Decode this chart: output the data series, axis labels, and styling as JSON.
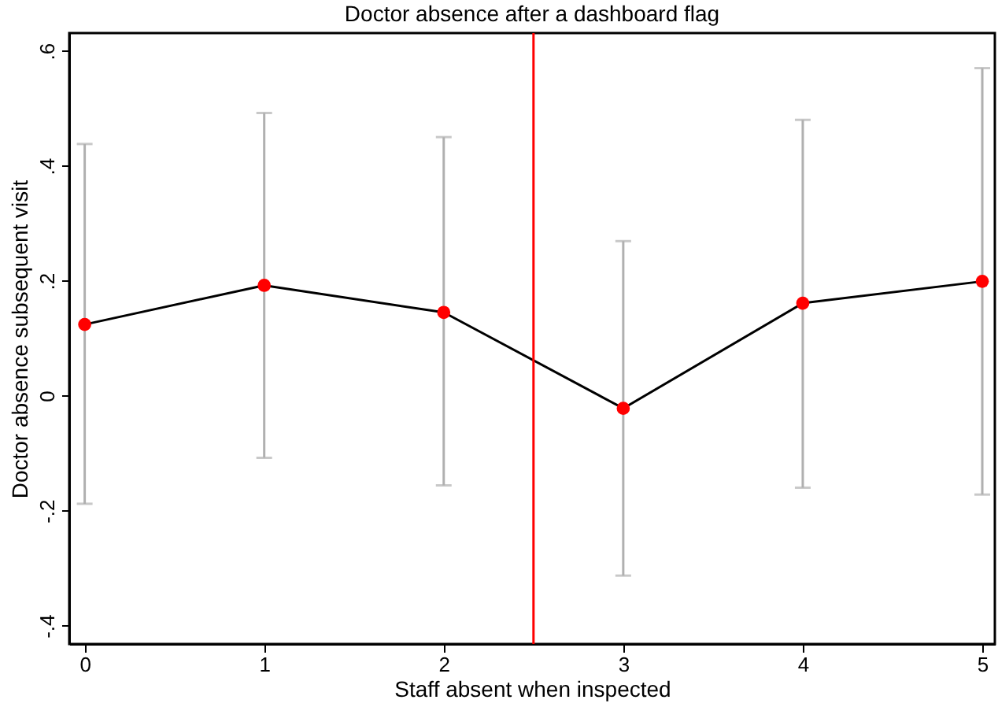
{
  "chart_data": {
    "type": "line",
    "title": "Doctor absence after a dashboard flag",
    "xlabel": "Staff absent when inspected",
    "ylabel": "Doctor absence subsequent visit",
    "x": [
      0,
      1,
      2,
      3,
      4,
      5
    ],
    "series": [
      {
        "color": "#000000",
        "marker": "none",
        "values": [
          0.124,
          0.192,
          0.145,
          -0.022,
          0.161,
          0.199
        ]
      },
      {
        "type": "scatter",
        "color": "#ff0000",
        "values": [
          0.124,
          0.192,
          0.145,
          -0.022,
          0.161,
          0.199
        ],
        "errors": [
          [
            -0.188,
            0.438
          ],
          [
            -0.108,
            0.492
          ],
          [
            -0.156,
            0.45
          ],
          [
            -0.313,
            0.269
          ],
          [
            -0.16,
            0.48
          ],
          [
            -0.172,
            0.57
          ]
        ]
      }
    ],
    "marker": "circle",
    "line_style": "solid",
    "xlim": [
      -0.086,
      5.07
    ],
    "xticks": [
      0,
      1,
      2,
      3,
      4,
      5
    ],
    "ylim": [
      -0.432,
      0.631
    ],
    "yticks": [
      {
        "value": -0.4,
        "label": "-.4"
      },
      {
        "value": -0.2,
        "label": "-.2"
      },
      0,
      {
        "value": 0.2,
        "label": ".2"
      },
      {
        "value": 0.4,
        "label": ".4"
      },
      {
        "value": 0.6,
        "label": ".6"
      }
    ],
    "ref_lines": [
      {
        "axis": "x",
        "value": 2.5,
        "label": null,
        "color": "#ff0000"
      }
    ],
    "grid": false
  }
}
